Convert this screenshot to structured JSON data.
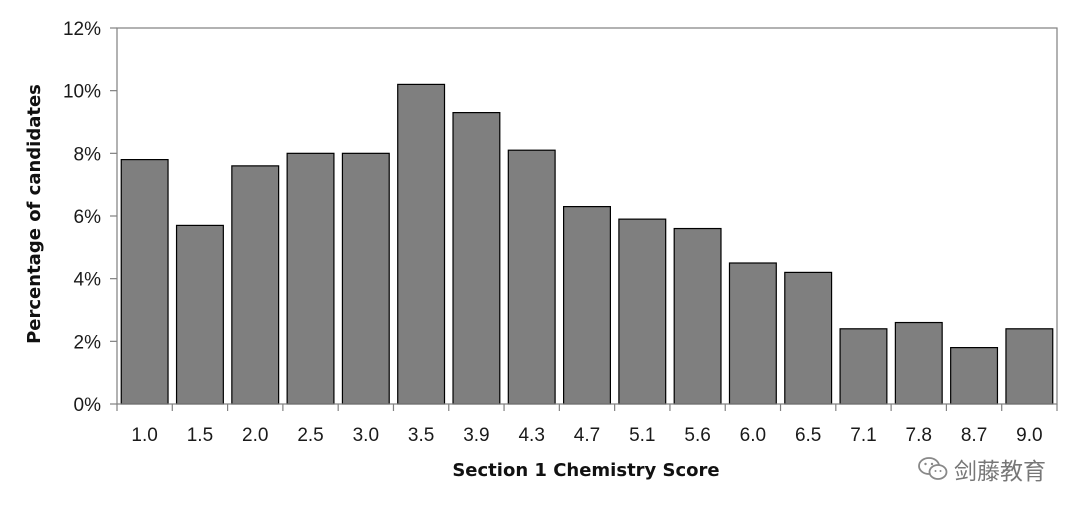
{
  "chart_data": {
    "type": "bar",
    "categories": [
      "1.0",
      "1.5",
      "2.0",
      "2.5",
      "3.0",
      "3.5",
      "3.9",
      "4.3",
      "4.7",
      "5.1",
      "5.6",
      "6.0",
      "6.5",
      "7.1",
      "7.8",
      "8.7",
      "9.0"
    ],
    "values": [
      7.8,
      5.7,
      7.6,
      8.0,
      8.0,
      10.2,
      9.3,
      8.1,
      6.3,
      5.9,
      5.6,
      4.5,
      4.2,
      2.4,
      2.6,
      1.8,
      2.4
    ],
    "value_unit": "%",
    "title": "",
    "xlabel": "Section 1 Chemistry Score",
    "ylabel": "Percentage of candidates",
    "ylim": [
      0,
      12
    ],
    "yticks": [
      "0%",
      "2%",
      "4%",
      "6%",
      "8%",
      "10%",
      "12%"
    ],
    "grid": false,
    "legend": "none",
    "colors": {
      "bar_fill": "#7f7f7f",
      "bar_stroke": "#000000",
      "axis": "#808080",
      "frame": "#7f7f7f"
    }
  },
  "watermark": {
    "text": "剑藤教育",
    "icon": "wechat-icon"
  }
}
